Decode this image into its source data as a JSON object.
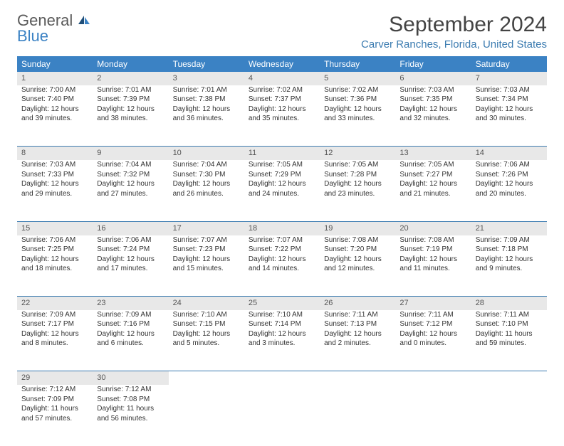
{
  "logo": {
    "line1": "General",
    "line2": "Blue"
  },
  "title": "September 2024",
  "location": "Carver Ranches, Florida, United States",
  "colors": {
    "header_bg": "#3b82c4",
    "header_text": "#ffffff",
    "daynum_bg": "#e8e8e8",
    "border": "#3b7bb0",
    "logo_gray": "#5a5a5a",
    "logo_blue": "#3b82c4"
  },
  "weekdays": [
    "Sunday",
    "Monday",
    "Tuesday",
    "Wednesday",
    "Thursday",
    "Friday",
    "Saturday"
  ],
  "weeks": [
    [
      {
        "n": "1",
        "sr": "Sunrise: 7:00 AM",
        "ss": "Sunset: 7:40 PM",
        "dl": "Daylight: 12 hours and 39 minutes."
      },
      {
        "n": "2",
        "sr": "Sunrise: 7:01 AM",
        "ss": "Sunset: 7:39 PM",
        "dl": "Daylight: 12 hours and 38 minutes."
      },
      {
        "n": "3",
        "sr": "Sunrise: 7:01 AM",
        "ss": "Sunset: 7:38 PM",
        "dl": "Daylight: 12 hours and 36 minutes."
      },
      {
        "n": "4",
        "sr": "Sunrise: 7:02 AM",
        "ss": "Sunset: 7:37 PM",
        "dl": "Daylight: 12 hours and 35 minutes."
      },
      {
        "n": "5",
        "sr": "Sunrise: 7:02 AM",
        "ss": "Sunset: 7:36 PM",
        "dl": "Daylight: 12 hours and 33 minutes."
      },
      {
        "n": "6",
        "sr": "Sunrise: 7:03 AM",
        "ss": "Sunset: 7:35 PM",
        "dl": "Daylight: 12 hours and 32 minutes."
      },
      {
        "n": "7",
        "sr": "Sunrise: 7:03 AM",
        "ss": "Sunset: 7:34 PM",
        "dl": "Daylight: 12 hours and 30 minutes."
      }
    ],
    [
      {
        "n": "8",
        "sr": "Sunrise: 7:03 AM",
        "ss": "Sunset: 7:33 PM",
        "dl": "Daylight: 12 hours and 29 minutes."
      },
      {
        "n": "9",
        "sr": "Sunrise: 7:04 AM",
        "ss": "Sunset: 7:32 PM",
        "dl": "Daylight: 12 hours and 27 minutes."
      },
      {
        "n": "10",
        "sr": "Sunrise: 7:04 AM",
        "ss": "Sunset: 7:30 PM",
        "dl": "Daylight: 12 hours and 26 minutes."
      },
      {
        "n": "11",
        "sr": "Sunrise: 7:05 AM",
        "ss": "Sunset: 7:29 PM",
        "dl": "Daylight: 12 hours and 24 minutes."
      },
      {
        "n": "12",
        "sr": "Sunrise: 7:05 AM",
        "ss": "Sunset: 7:28 PM",
        "dl": "Daylight: 12 hours and 23 minutes."
      },
      {
        "n": "13",
        "sr": "Sunrise: 7:05 AM",
        "ss": "Sunset: 7:27 PM",
        "dl": "Daylight: 12 hours and 21 minutes."
      },
      {
        "n": "14",
        "sr": "Sunrise: 7:06 AM",
        "ss": "Sunset: 7:26 PM",
        "dl": "Daylight: 12 hours and 20 minutes."
      }
    ],
    [
      {
        "n": "15",
        "sr": "Sunrise: 7:06 AM",
        "ss": "Sunset: 7:25 PM",
        "dl": "Daylight: 12 hours and 18 minutes."
      },
      {
        "n": "16",
        "sr": "Sunrise: 7:06 AM",
        "ss": "Sunset: 7:24 PM",
        "dl": "Daylight: 12 hours and 17 minutes."
      },
      {
        "n": "17",
        "sr": "Sunrise: 7:07 AM",
        "ss": "Sunset: 7:23 PM",
        "dl": "Daylight: 12 hours and 15 minutes."
      },
      {
        "n": "18",
        "sr": "Sunrise: 7:07 AM",
        "ss": "Sunset: 7:22 PM",
        "dl": "Daylight: 12 hours and 14 minutes."
      },
      {
        "n": "19",
        "sr": "Sunrise: 7:08 AM",
        "ss": "Sunset: 7:20 PM",
        "dl": "Daylight: 12 hours and 12 minutes."
      },
      {
        "n": "20",
        "sr": "Sunrise: 7:08 AM",
        "ss": "Sunset: 7:19 PM",
        "dl": "Daylight: 12 hours and 11 minutes."
      },
      {
        "n": "21",
        "sr": "Sunrise: 7:09 AM",
        "ss": "Sunset: 7:18 PM",
        "dl": "Daylight: 12 hours and 9 minutes."
      }
    ],
    [
      {
        "n": "22",
        "sr": "Sunrise: 7:09 AM",
        "ss": "Sunset: 7:17 PM",
        "dl": "Daylight: 12 hours and 8 minutes."
      },
      {
        "n": "23",
        "sr": "Sunrise: 7:09 AM",
        "ss": "Sunset: 7:16 PM",
        "dl": "Daylight: 12 hours and 6 minutes."
      },
      {
        "n": "24",
        "sr": "Sunrise: 7:10 AM",
        "ss": "Sunset: 7:15 PM",
        "dl": "Daylight: 12 hours and 5 minutes."
      },
      {
        "n": "25",
        "sr": "Sunrise: 7:10 AM",
        "ss": "Sunset: 7:14 PM",
        "dl": "Daylight: 12 hours and 3 minutes."
      },
      {
        "n": "26",
        "sr": "Sunrise: 7:11 AM",
        "ss": "Sunset: 7:13 PM",
        "dl": "Daylight: 12 hours and 2 minutes."
      },
      {
        "n": "27",
        "sr": "Sunrise: 7:11 AM",
        "ss": "Sunset: 7:12 PM",
        "dl": "Daylight: 12 hours and 0 minutes."
      },
      {
        "n": "28",
        "sr": "Sunrise: 7:11 AM",
        "ss": "Sunset: 7:10 PM",
        "dl": "Daylight: 11 hours and 59 minutes."
      }
    ],
    [
      {
        "n": "29",
        "sr": "Sunrise: 7:12 AM",
        "ss": "Sunset: 7:09 PM",
        "dl": "Daylight: 11 hours and 57 minutes."
      },
      {
        "n": "30",
        "sr": "Sunrise: 7:12 AM",
        "ss": "Sunset: 7:08 PM",
        "dl": "Daylight: 11 hours and 56 minutes."
      },
      null,
      null,
      null,
      null,
      null
    ]
  ]
}
